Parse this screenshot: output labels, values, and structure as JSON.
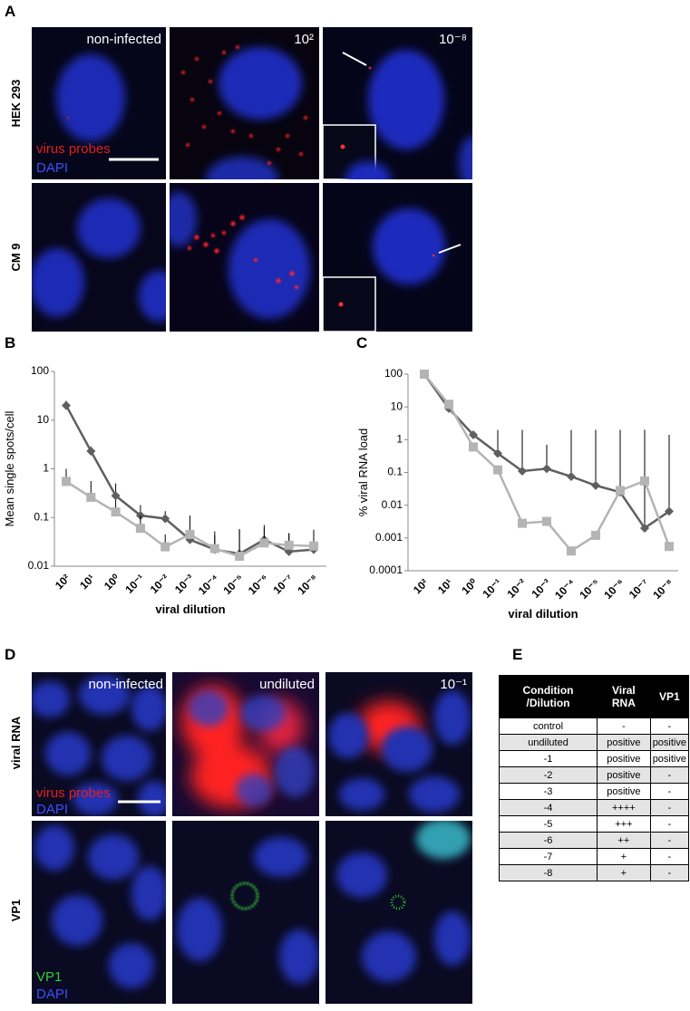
{
  "panel_labels": [
    "A",
    "B",
    "C",
    "D",
    "E"
  ],
  "panel_a": {
    "row_labels": [
      "HEK 293",
      "CM 9"
    ],
    "column_labels": [
      "non-infected",
      "10²",
      "10⁻⁸"
    ],
    "legend": [
      "virus probes",
      "DAPI"
    ]
  },
  "chart_data": [
    {
      "type": "line",
      "y_label": "Mean single spots/cell",
      "x_label": "viral dilution",
      "log_y": true,
      "categories": [
        "10²",
        "10¹",
        "10⁰",
        "10⁻¹",
        "10⁻²",
        "10⁻³",
        "10⁻⁴",
        "10⁻⁵",
        "10⁻⁶",
        "10⁻⁷",
        "10⁻⁸"
      ],
      "ylim": [
        0.01,
        100
      ],
      "yticks": [
        0.01,
        0.1,
        1,
        10,
        100
      ],
      "series": [
        {
          "color": "#5f5f5f",
          "marker": "diamond",
          "values": [
            20,
            2.3,
            0.28,
            0.11,
            0.095,
            0.035,
            0.022,
            0.018,
            0.035,
            0.02,
            0.022
          ],
          "errors": [
            5,
            0.6,
            0.22,
            0.07,
            0.04,
            0.075,
            0.03,
            0.04,
            0.035,
            0.028,
            0.03
          ]
        },
        {
          "color": "#b4b4b4",
          "marker": "square",
          "values": [
            0.55,
            0.26,
            0.13,
            0.06,
            0.025,
            0.045,
            0.023,
            0.016,
            0.03,
            0.027,
            0.026
          ],
          "errors": [
            0.45,
            0.3,
            0.1,
            0.05,
            0.02,
            0.06,
            0.02,
            0.04,
            0.03,
            0.02,
            0.03
          ]
        }
      ]
    },
    {
      "type": "line",
      "y_label": "% viral RNA load",
      "x_label": "viral dilution",
      "log_y": true,
      "categories": [
        "10²",
        "10¹",
        "10⁰",
        "10⁻¹",
        "10⁻²",
        "10⁻³",
        "10⁻⁴",
        "10⁻⁵",
        "10⁻⁶",
        "10⁻⁷",
        "10⁻⁸"
      ],
      "ylim": [
        0.0001,
        100
      ],
      "yticks": [
        0.0001,
        0.001,
        0.01,
        0.1,
        1,
        10,
        100
      ],
      "series": [
        {
          "color": "#5f5f5f",
          "marker": "diamond",
          "values": [
            100,
            9,
            1.4,
            0.38,
            0.11,
            0.13,
            0.075,
            0.04,
            0.025,
            0.002,
            0.0065
          ],
          "errors": [
            null,
            null,
            null,
            1.6,
            1.9,
            0.57,
            1.9,
            1.96,
            1.97,
            2,
            1.4
          ]
        },
        {
          "color": "#b4b4b4",
          "marker": "square",
          "values": [
            100,
            12,
            0.6,
            0.12,
            0.0028,
            0.0032,
            0.0004,
            0.0012,
            0.028,
            0.055,
            0.00055
          ],
          "errors": [
            null,
            null,
            null,
            null,
            null,
            null,
            null,
            null,
            null,
            null,
            null
          ]
        }
      ]
    }
  ],
  "panel_d": {
    "row_labels": [
      "viral RNA",
      "VP1"
    ],
    "column_labels": [
      "non-infected",
      "undiluted",
      "10⁻¹"
    ],
    "legend_top": [
      "virus probes",
      "DAPI"
    ],
    "legend_bottom": [
      "VP1",
      "DAPI"
    ]
  },
  "table": {
    "header": [
      "Condition /Dilution",
      "Viral RNA",
      "VP1"
    ],
    "rows": [
      [
        "control",
        "-",
        "-"
      ],
      [
        "undiluted",
        "positive",
        "positive"
      ],
      [
        "-1",
        "positive",
        "positive"
      ],
      [
        "-2",
        "positive",
        "-"
      ],
      [
        "-3",
        "positive",
        "-"
      ],
      [
        "-4",
        "++++",
        "-"
      ],
      [
        "-5",
        "+++",
        "-"
      ],
      [
        "-6",
        "++",
        "-"
      ],
      [
        "-7",
        "+",
        "-"
      ],
      [
        "-8",
        "+",
        "-"
      ]
    ]
  }
}
